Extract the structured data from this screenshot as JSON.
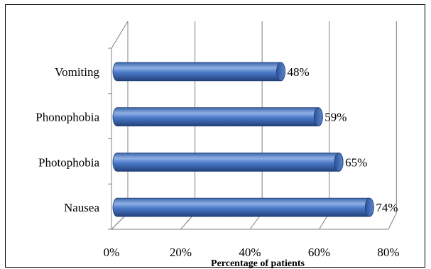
{
  "chart_data": {
    "type": "bar",
    "orientation": "horizontal",
    "style": "3d-cylinder",
    "categories": [
      "Nausea",
      "Photophobia",
      "Phonophobia",
      "Vomiting"
    ],
    "values": [
      74,
      65,
      59,
      48
    ],
    "data_labels": [
      "74%",
      "65%",
      "59%",
      "48%"
    ],
    "xlabel": "Percentage of patients",
    "ylabel": "",
    "x_ticks": [
      "0%",
      "20%",
      "40%",
      "60%",
      "80%"
    ],
    "xlim": [
      0,
      80
    ],
    "grid": true,
    "legend": "none",
    "bar_color": "#4472C4"
  }
}
